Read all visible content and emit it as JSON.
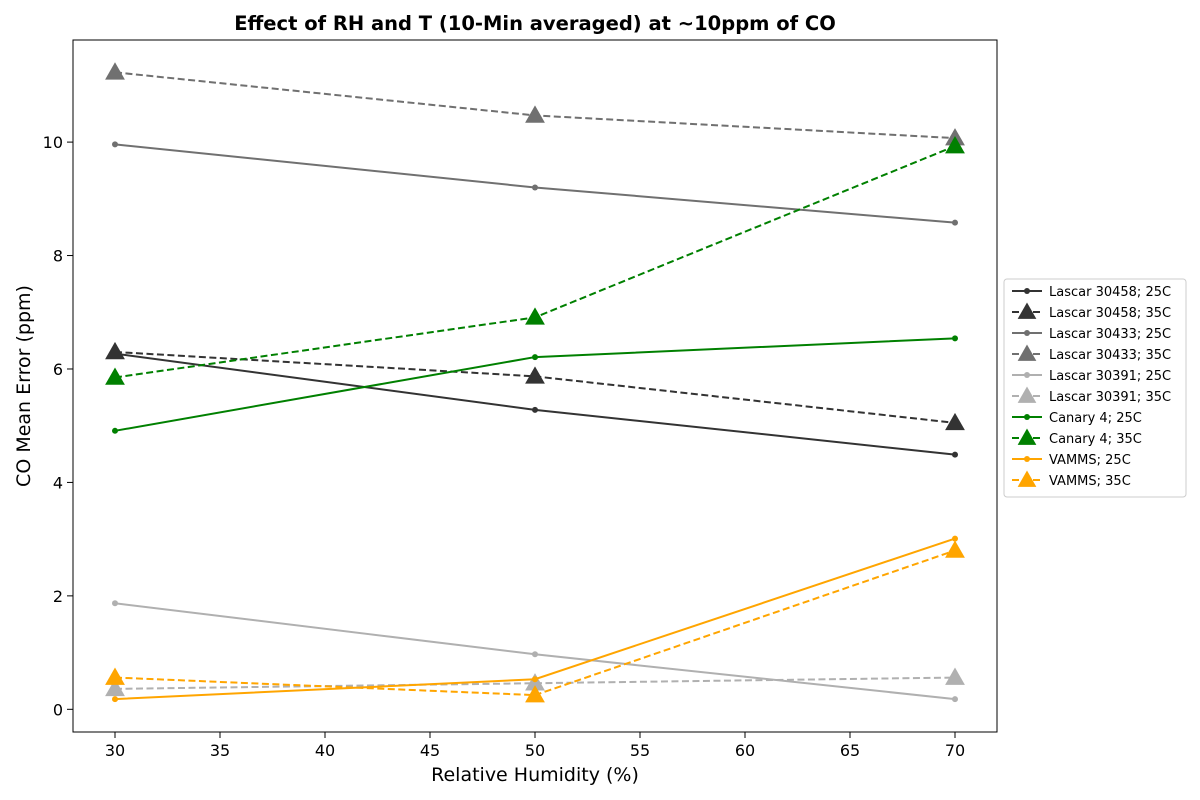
{
  "chart_data": {
    "type": "line",
    "title": "Effect of RH and T (10-Min averaged) at ~10ppm of CO",
    "xlabel": "Relative Humidity (%)",
    "ylabel": "CO Mean Error (ppm)",
    "xlim": [
      28,
      72
    ],
    "ylim": [
      -0.4,
      11.8
    ],
    "xticks": [
      30,
      35,
      40,
      45,
      50,
      55,
      60,
      65,
      70
    ],
    "yticks": [
      0,
      2,
      4,
      6,
      8,
      10
    ],
    "grid": false,
    "legend_position": "right, outside plot",
    "x": [
      30,
      50,
      70
    ],
    "series": [
      {
        "name": "Lascar 30458; 25C",
        "values": [
          6.27,
          5.28,
          4.49
        ],
        "color": "#333333",
        "dash": "solid",
        "marker": "dot"
      },
      {
        "name": "Lascar 30458; 35C",
        "values": [
          6.3,
          5.87,
          5.05
        ],
        "color": "#333333",
        "dash": "dashed",
        "marker": "triangle"
      },
      {
        "name": "Lascar 30433; 25C",
        "values": [
          9.96,
          9.2,
          8.58
        ],
        "color": "#707070",
        "dash": "solid",
        "marker": "dot"
      },
      {
        "name": "Lascar 30433; 35C",
        "values": [
          11.23,
          10.47,
          10.07
        ],
        "color": "#707070",
        "dash": "dashed",
        "marker": "triangle"
      },
      {
        "name": "Lascar 30391; 25C",
        "values": [
          1.87,
          0.97,
          0.18
        ],
        "color": "#b0b0b0",
        "dash": "solid",
        "marker": "dot"
      },
      {
        "name": "Lascar 30391; 35C",
        "values": [
          0.36,
          0.46,
          0.56
        ],
        "color": "#b0b0b0",
        "dash": "dashed",
        "marker": "triangle"
      },
      {
        "name": "Canary 4; 25C",
        "values": [
          4.91,
          6.21,
          6.54
        ],
        "color": "#008000",
        "dash": "solid",
        "marker": "dot"
      },
      {
        "name": "Canary 4; 35C",
        "values": [
          5.85,
          6.91,
          9.93
        ],
        "color": "#008000",
        "dash": "dashed",
        "marker": "triangle"
      },
      {
        "name": "VAMMS; 25C",
        "values": [
          0.18,
          0.53,
          3.01
        ],
        "color": "#ffa500",
        "dash": "solid",
        "marker": "dot"
      },
      {
        "name": "VAMMS; 35C",
        "values": [
          0.56,
          0.25,
          2.8
        ],
        "color": "#ffa500",
        "dash": "dashed",
        "marker": "triangle"
      }
    ]
  }
}
